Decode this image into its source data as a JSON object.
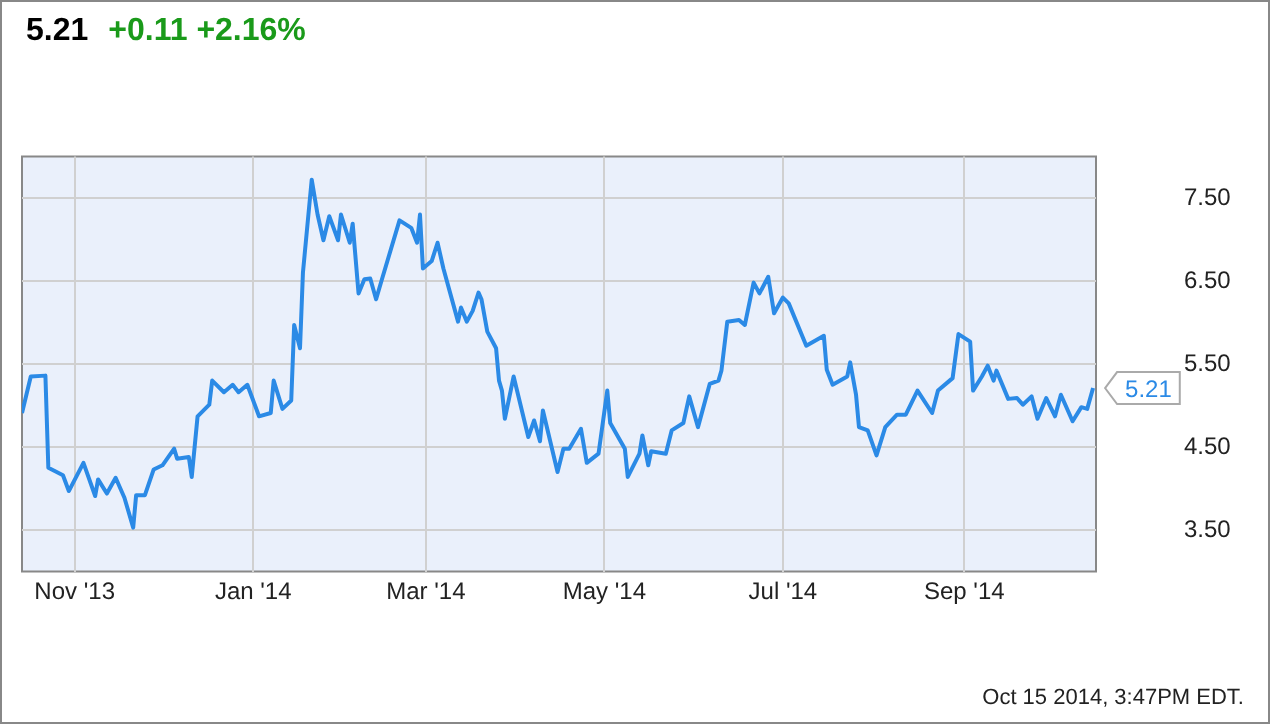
{
  "chart_data": {
    "type": "line",
    "title": "5.21",
    "subtitle": "+0.11 +2.16%",
    "annotations": [
      "Oct 15 2014, 3:47PM EDT."
    ],
    "x": [
      "2013-10-14",
      "2013-10-17",
      "2013-10-22",
      "2013-10-23",
      "2013-10-28",
      "2013-10-30",
      "2013-11-04",
      "2013-11-08",
      "2013-11-09",
      "2013-11-12",
      "2013-11-15",
      "2013-11-18",
      "2013-11-21",
      "2013-11-22",
      "2013-11-25",
      "2013-11-28",
      "2013-12-01",
      "2013-12-05",
      "2013-12-06",
      "2013-12-10",
      "2013-12-11",
      "2013-12-13",
      "2013-12-17",
      "2013-12-18",
      "2013-12-22",
      "2013-12-25",
      "2013-12-27",
      "2013-12-30",
      "2014-01-03",
      "2014-01-07",
      "2014-01-08",
      "2014-01-11",
      "2014-01-14",
      "2014-01-15",
      "2014-01-17",
      "2014-01-18",
      "2014-01-21",
      "2014-01-23",
      "2014-01-25",
      "2014-01-27",
      "2014-01-30",
      "2014-01-31",
      "2014-02-03",
      "2014-02-04",
      "2014-02-06",
      "2014-02-08",
      "2014-02-10",
      "2014-02-12",
      "2014-02-14",
      "2014-02-20",
      "2014-02-24",
      "2014-02-26",
      "2014-02-27",
      "2014-02-28",
      "2014-03-03",
      "2014-03-05",
      "2014-03-07",
      "2014-03-12",
      "2014-03-13",
      "2014-03-15",
      "2014-03-17",
      "2014-03-19",
      "2014-03-20",
      "2014-03-22",
      "2014-03-25",
      "2014-03-26",
      "2014-03-27",
      "2014-03-28",
      "2014-03-31",
      "2014-04-05",
      "2014-04-07",
      "2014-04-09",
      "2014-04-10",
      "2014-04-15",
      "2014-04-17",
      "2014-04-19",
      "2014-04-23",
      "2014-04-25",
      "2014-04-29",
      "2014-05-02",
      "2014-05-03",
      "2014-05-08",
      "2014-05-09",
      "2014-05-13",
      "2014-05-14",
      "2014-05-16",
      "2014-05-17",
      "2014-05-22",
      "2014-05-24",
      "2014-05-28",
      "2014-05-30",
      "2014-06-02",
      "2014-06-06",
      "2014-06-09",
      "2014-06-10",
      "2014-06-12",
      "2014-06-16",
      "2014-06-18",
      "2014-06-21",
      "2014-06-23",
      "2014-06-26",
      "2014-06-28",
      "2014-07-01",
      "2014-07-03",
      "2014-07-09",
      "2014-07-15",
      "2014-07-16",
      "2014-07-18",
      "2014-07-23",
      "2014-07-24",
      "2014-07-26",
      "2014-07-27",
      "2014-07-30",
      "2014-08-02",
      "2014-08-05",
      "2014-08-09",
      "2014-08-12",
      "2014-08-16",
      "2014-08-21",
      "2014-08-23",
      "2014-08-27",
      "2014-08-28",
      "2014-08-30",
      "2014-09-03",
      "2014-09-04",
      "2014-09-07",
      "2014-09-09",
      "2014-09-11",
      "2014-09-12",
      "2014-09-16",
      "2014-09-19",
      "2014-09-21",
      "2014-09-24",
      "2014-09-26",
      "2014-09-29",
      "2014-10-02",
      "2014-10-04",
      "2014-10-08",
      "2014-10-11",
      "2014-10-13",
      "2014-10-15"
    ],
    "series": [
      {
        "color": "#2b8ae6",
        "values": [
          4.91,
          5.35,
          5.36,
          4.25,
          4.16,
          3.97,
          4.31,
          3.91,
          4.11,
          3.94,
          4.13,
          3.89,
          3.53,
          3.92,
          3.92,
          4.23,
          4.28,
          4.48,
          4.36,
          4.38,
          4.14,
          4.87,
          5.01,
          5.3,
          5.16,
          5.25,
          5.16,
          5.25,
          4.87,
          4.91,
          5.3,
          4.96,
          5.06,
          5.97,
          5.69,
          6.6,
          7.72,
          7.3,
          6.99,
          7.28,
          6.99,
          7.3,
          6.96,
          7.19,
          6.35,
          6.52,
          6.53,
          6.28,
          6.52,
          7.23,
          7.14,
          6.96,
          7.3,
          6.65,
          6.74,
          6.96,
          6.65,
          6.01,
          6.18,
          6.01,
          6.14,
          6.36,
          6.28,
          5.89,
          5.69,
          5.3,
          5.18,
          4.84,
          5.35,
          4.62,
          4.82,
          4.57,
          4.94,
          4.2,
          4.48,
          4.48,
          4.72,
          4.31,
          4.42,
          5.18,
          4.79,
          4.48,
          4.14,
          4.42,
          4.64,
          4.28,
          4.45,
          4.42,
          4.7,
          4.79,
          5.11,
          4.74,
          5.26,
          5.3,
          5.42,
          6.01,
          6.03,
          5.97,
          6.48,
          6.35,
          6.55,
          6.11,
          6.3,
          6.23,
          5.72,
          5.84,
          5.43,
          5.25,
          5.35,
          5.52,
          5.13,
          4.74,
          4.7,
          4.4,
          4.74,
          4.89,
          4.89,
          5.18,
          4.91,
          5.18,
          5.3,
          5.33,
          5.86,
          5.77,
          5.18,
          5.35,
          5.48,
          5.3,
          5.42,
          5.08,
          5.09,
          5.01,
          5.11,
          4.84,
          5.09,
          4.87,
          5.13,
          4.81,
          4.98,
          4.96,
          5.21
        ],
        "value_labels": [
          null,
          null,
          null,
          null,
          null,
          null,
          null,
          null,
          null,
          null,
          null,
          null,
          null,
          null,
          null,
          null,
          null,
          null,
          null,
          null,
          null,
          null,
          null,
          null,
          null,
          null,
          null,
          null,
          null,
          null,
          null,
          null,
          null,
          null,
          null,
          null,
          null,
          null,
          null,
          null,
          null,
          null,
          null,
          null,
          null,
          null,
          null,
          null,
          null,
          null,
          null,
          null,
          null,
          null,
          null,
          null,
          null,
          null,
          null,
          null,
          null,
          null,
          null,
          null,
          null,
          null,
          null,
          null,
          null,
          null,
          null,
          null,
          null,
          null,
          null,
          null,
          null,
          null,
          null,
          null,
          null,
          null,
          null,
          null,
          null,
          null,
          null,
          null,
          null,
          null,
          null,
          null,
          null,
          null,
          null,
          null,
          null,
          null,
          null,
          null,
          null,
          null,
          null,
          null,
          null,
          null,
          null,
          null,
          null,
          null,
          null,
          null,
          null,
          null,
          null,
          null,
          null,
          null,
          null,
          null,
          null,
          null,
          null,
          null,
          null,
          null,
          null,
          null,
          null,
          null,
          null,
          null,
          null,
          null,
          null,
          null,
          null,
          null,
          null,
          null,
          "5.21"
        ]
      }
    ],
    "xlim": [
      "2013-10-14",
      "2014-10-16"
    ],
    "xticks": [
      {
        "value": "2013-11-01",
        "label": "Nov '13"
      },
      {
        "value": "2014-01-01",
        "label": "Jan '14"
      },
      {
        "value": "2014-03-01",
        "label": "Mar '14"
      },
      {
        "value": "2014-05-01",
        "label": "May '14"
      },
      {
        "value": "2014-07-01",
        "label": "Jul '14"
      },
      {
        "value": "2014-09-01",
        "label": "Sep '14"
      }
    ],
    "ylim": [
      3,
      8
    ],
    "yticks": [
      {
        "value": 3.5,
        "label": "3.50"
      },
      {
        "value": 4.5,
        "label": "4.50"
      },
      {
        "value": 5.5,
        "label": "5.50"
      },
      {
        "value": 6.5,
        "label": "6.50"
      },
      {
        "value": 7.5,
        "label": "7.50"
      }
    ],
    "grid": true,
    "legend": false,
    "marker": "none",
    "line_style": "solid"
  }
}
